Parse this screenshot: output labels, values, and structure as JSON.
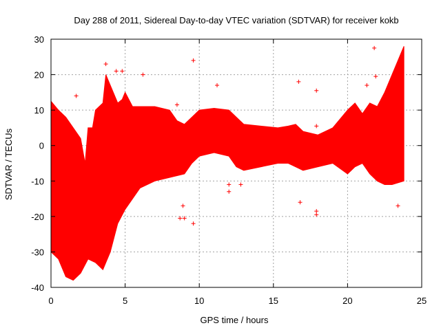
{
  "chart_data": {
    "type": "scatter",
    "title": "Day 288 of 2011, Sidereal Day-to-day VTEC variation (SDTVAR) for receiver kokb",
    "xlabel": "GPS time / hours",
    "ylabel": "SDTVAR / TECUs",
    "xlim": [
      0,
      25
    ],
    "ylim": [
      -40,
      30
    ],
    "xticks": [
      0,
      5,
      10,
      15,
      20,
      25
    ],
    "yticks": [
      -40,
      -30,
      -20,
      -10,
      0,
      10,
      20,
      30
    ],
    "grid": true,
    "marker": "+",
    "color": "#ff0000",
    "series": [
      {
        "name": "SDTVAR",
        "envelope_upper": [
          [
            0,
            12.5
          ],
          [
            0.5,
            10
          ],
          [
            1,
            8
          ],
          [
            1.5,
            5
          ],
          [
            2,
            2
          ],
          [
            2.3,
            -5
          ],
          [
            2.5,
            5
          ],
          [
            2.8,
            5
          ],
          [
            3,
            10
          ],
          [
            3.5,
            12
          ],
          [
            3.7,
            20
          ],
          [
            4,
            17
          ],
          [
            4.5,
            12
          ],
          [
            4.8,
            13
          ],
          [
            5,
            15
          ],
          [
            5.5,
            11
          ],
          [
            6,
            11
          ],
          [
            7,
            11
          ],
          [
            8,
            10
          ],
          [
            8.5,
            7
          ],
          [
            9,
            6
          ],
          [
            9.5,
            8
          ],
          [
            10,
            10
          ],
          [
            11,
            10.5
          ],
          [
            12,
            10
          ],
          [
            12.5,
            8
          ],
          [
            13,
            6
          ],
          [
            15.3,
            5
          ],
          [
            16,
            5.5
          ],
          [
            16.5,
            6
          ],
          [
            17,
            4
          ],
          [
            18,
            3
          ],
          [
            19,
            5
          ],
          [
            20,
            10
          ],
          [
            20.5,
            12
          ],
          [
            21,
            9
          ],
          [
            21.5,
            12
          ],
          [
            22,
            11
          ],
          [
            22.5,
            15
          ],
          [
            23,
            20
          ],
          [
            23.5,
            25
          ],
          [
            23.8,
            28
          ]
        ],
        "envelope_lower": [
          [
            0,
            -30
          ],
          [
            0.5,
            -32
          ],
          [
            1,
            -37
          ],
          [
            1.5,
            -38
          ],
          [
            2,
            -36
          ],
          [
            2.5,
            -32
          ],
          [
            3,
            -33
          ],
          [
            3.5,
            -35
          ],
          [
            4,
            -30
          ],
          [
            4.5,
            -22
          ],
          [
            5,
            -18
          ],
          [
            5.5,
            -15
          ],
          [
            6,
            -12
          ],
          [
            7,
            -10
          ],
          [
            8,
            -9
          ],
          [
            9,
            -8
          ],
          [
            9.5,
            -5
          ],
          [
            10,
            -3
          ],
          [
            11,
            -2
          ],
          [
            12,
            -3
          ],
          [
            12.5,
            -6
          ],
          [
            13,
            -7
          ],
          [
            15.3,
            -5
          ],
          [
            16,
            -5
          ],
          [
            16.5,
            -6
          ],
          [
            17,
            -7
          ],
          [
            18,
            -6
          ],
          [
            19,
            -5
          ],
          [
            20,
            -8
          ],
          [
            20.5,
            -6
          ],
          [
            21,
            -5
          ],
          [
            21.5,
            -8
          ],
          [
            22,
            -10
          ],
          [
            22.5,
            -11
          ],
          [
            23,
            -11
          ],
          [
            23.8,
            -10
          ]
        ],
        "outliers": [
          [
            1.7,
            14
          ],
          [
            3.7,
            23
          ],
          [
            4.4,
            21
          ],
          [
            4.8,
            21
          ],
          [
            6.2,
            20
          ],
          [
            8.5,
            11.5
          ],
          [
            8.7,
            -20.5
          ],
          [
            8.9,
            -17
          ],
          [
            9,
            -20.5
          ],
          [
            9.6,
            24
          ],
          [
            9.6,
            -22
          ],
          [
            11.2,
            17
          ],
          [
            12.0,
            -13
          ],
          [
            12.0,
            -11
          ],
          [
            12.8,
            -11
          ],
          [
            16.7,
            18
          ],
          [
            16.8,
            -16
          ],
          [
            17.9,
            15.5
          ],
          [
            17.9,
            -18.5
          ],
          [
            17.9,
            -19.5
          ],
          [
            17.9,
            5.5
          ],
          [
            21.8,
            27.5
          ],
          [
            21.9,
            19.5
          ],
          [
            21.3,
            17
          ],
          [
            23.4,
            -17
          ]
        ]
      }
    ]
  }
}
